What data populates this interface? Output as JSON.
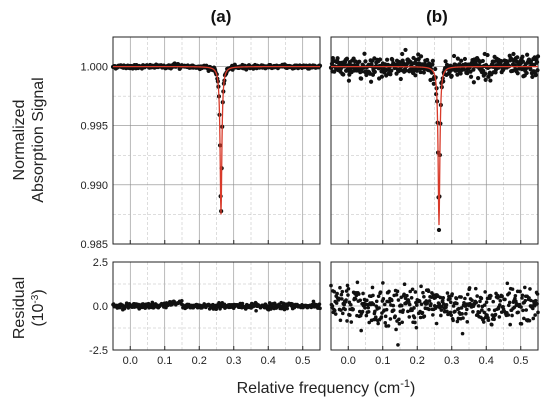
{
  "chart_data": {
    "type": "scatter",
    "panels": [
      {
        "id": "a",
        "title": "(a)"
      },
      {
        "id": "b",
        "title": "(b)"
      }
    ],
    "xlabel_main": "Relative frequency (cm",
    "xlabel_sup": "-1",
    "xlabel_end": ")",
    "xlim": [
      -0.05,
      0.55
    ],
    "xticks": [
      "0.0",
      "0.1",
      "0.2",
      "0.3",
      "0.4",
      "0.5"
    ],
    "top": {
      "ylabel": [
        "Normalized",
        "Absorption Signal"
      ],
      "ylim": [
        0.985,
        1.0025
      ],
      "yticks": [
        "0.985",
        "0.990",
        "0.995",
        "1.000"
      ],
      "line_center": 0.263,
      "line_width": 0.006,
      "a_min": 0.9875,
      "b_min": 0.9866,
      "noise_a": 8e-05,
      "noise_b": 0.00045
    },
    "bottom": {
      "ylabel": "Residual",
      "ylabel_unit_main": "(10",
      "ylabel_unit_sup": "-3",
      "ylabel_unit_end": ")",
      "ylim": [
        -2.5,
        2.5
      ],
      "yticks": [
        "-2.5",
        "0.0",
        "2.5"
      ],
      "noise_a": 0.08,
      "noise_b": 0.55
    },
    "colors": {
      "points": "#111111",
      "fit": "#d83a2a",
      "grid": "#999999"
    }
  }
}
